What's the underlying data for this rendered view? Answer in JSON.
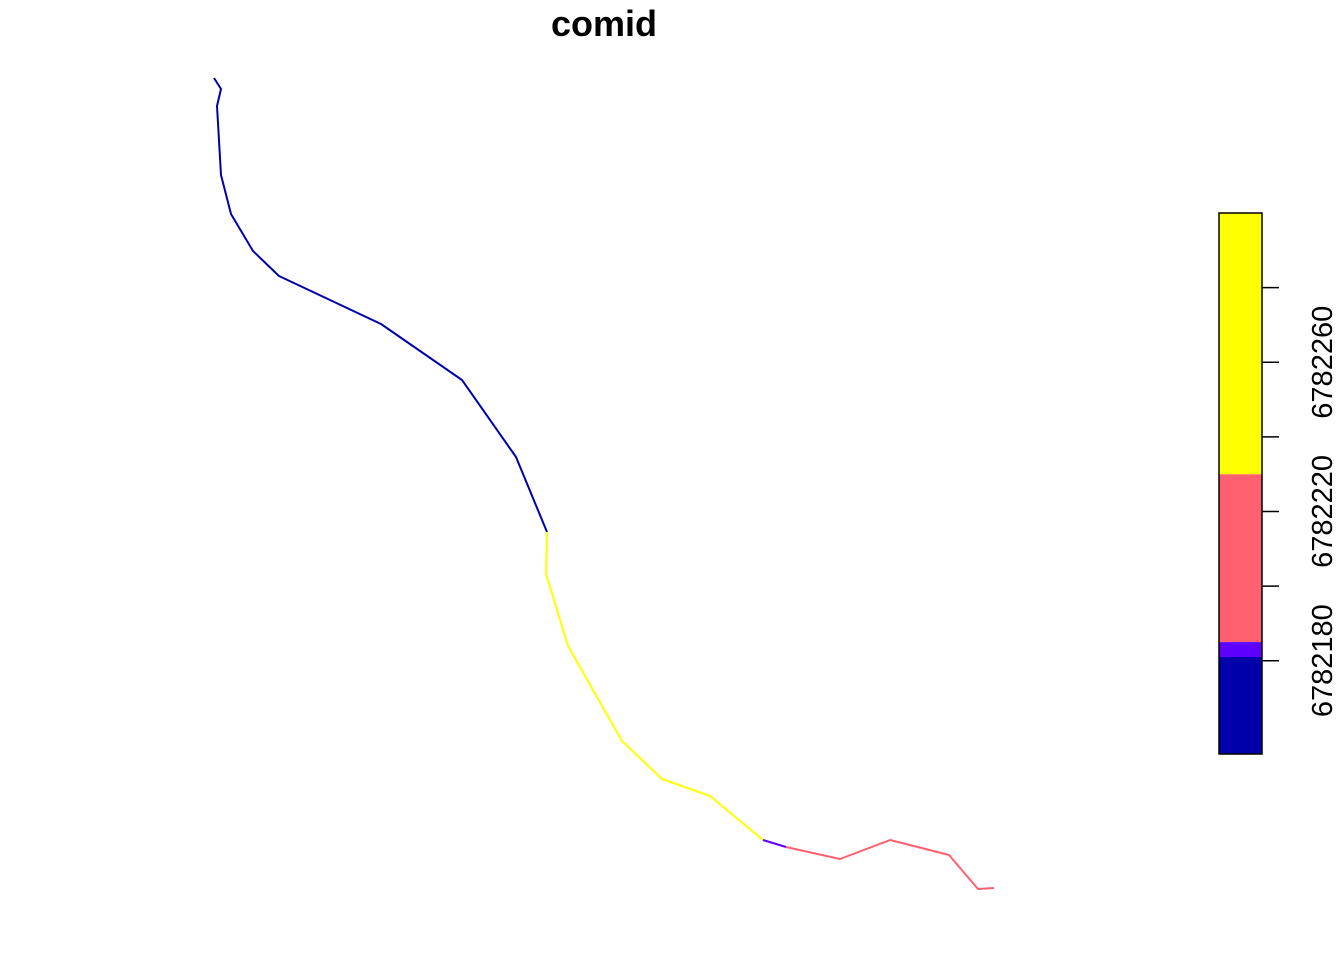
{
  "chart_data": {
    "type": "line",
    "title": "comid",
    "series": [
      {
        "color": "#0000AA",
        "points": [
          [
            214,
            78
          ],
          [
            221,
            89
          ],
          [
            217,
            106
          ],
          [
            221,
            175
          ],
          [
            231,
            214
          ],
          [
            253,
            251
          ],
          [
            279,
            276
          ],
          [
            381,
            324
          ],
          [
            462,
            380
          ],
          [
            516,
            457
          ],
          [
            547,
            532
          ]
        ]
      },
      {
        "color": "#FFFF00",
        "points": [
          [
            547,
            532
          ],
          [
            546,
            574
          ],
          [
            568,
            646
          ],
          [
            622,
            741
          ],
          [
            662,
            779
          ],
          [
            710,
            796
          ],
          [
            763,
            840
          ]
        ]
      },
      {
        "color": "#5E00FF",
        "points": [
          [
            763,
            840
          ],
          [
            786,
            847
          ]
        ]
      },
      {
        "color": "#FF6070",
        "points": [
          [
            786,
            847
          ],
          [
            840,
            859
          ],
          [
            890,
            840
          ],
          [
            949,
            855
          ],
          [
            978,
            889
          ],
          [
            994,
            888
          ]
        ]
      }
    ],
    "legend": {
      "type": "colorbar",
      "position": "right",
      "bands": [
        {
          "from": 6782155,
          "to": 6782181,
          "color": "#0000AA"
        },
        {
          "from": 6782181,
          "to": 6782185,
          "color": "#5E00FF"
        },
        {
          "from": 6782185,
          "to": 6782230,
          "color": "#FF6070"
        },
        {
          "from": 6782230,
          "to": 6782300,
          "color": "#FFFF00"
        }
      ],
      "ticks": [
        6782180,
        6782200,
        6782220,
        6782240,
        6782260,
        6782280
      ],
      "tick_labels": [
        "6782180",
        "6782220",
        "6782260"
      ]
    }
  }
}
